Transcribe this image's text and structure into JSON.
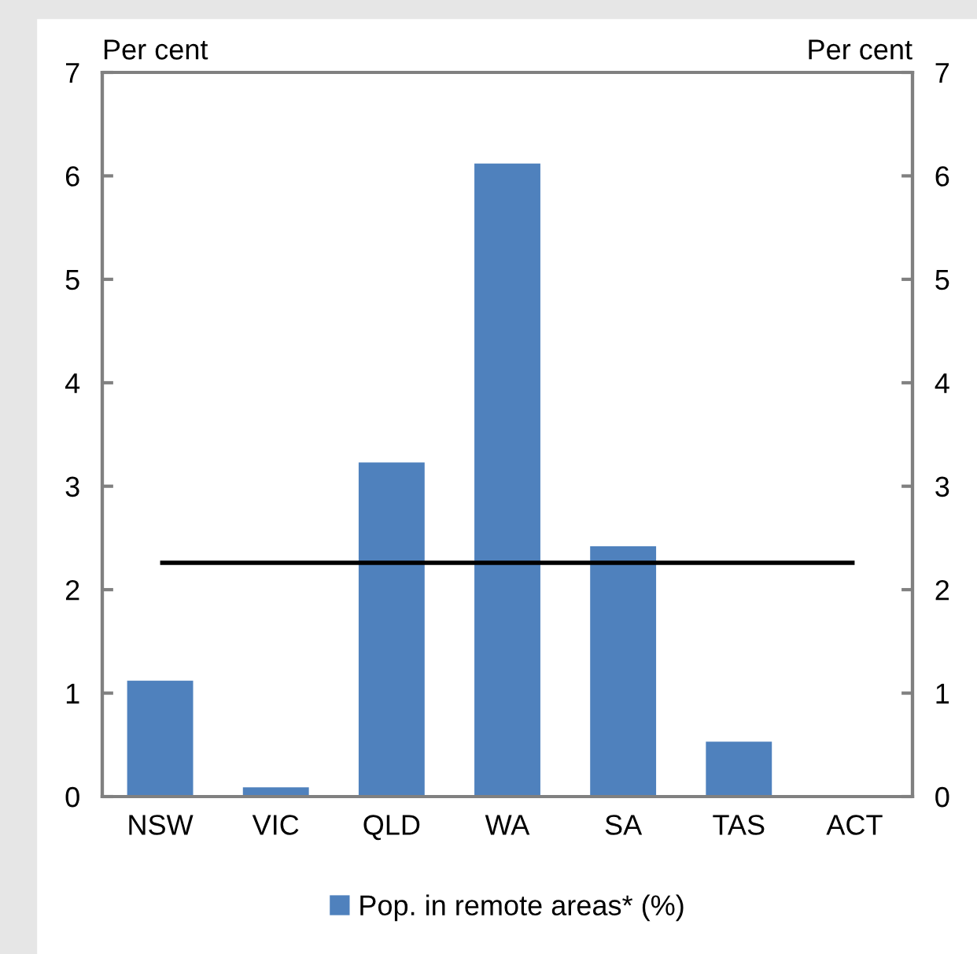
{
  "chart_data": {
    "type": "bar",
    "categories": [
      "NSW",
      "VIC",
      "QLD",
      "WA",
      "SA",
      "TAS",
      "ACT"
    ],
    "series": [
      {
        "name": "Pop. in remote areas* (%)",
        "color": "#4f81bd",
        "values": [
          1.12,
          0.09,
          3.23,
          6.12,
          2.42,
          0.53,
          0
        ]
      }
    ],
    "ylabel": "Per cent",
    "y2label": "Per cent",
    "ylim": [
      0,
      7
    ],
    "yticks": [
      0,
      1,
      2,
      3,
      4,
      5,
      6,
      7
    ],
    "y2lim": [
      0,
      7
    ],
    "y2ticks": [
      0,
      1,
      2,
      3,
      4,
      5,
      6,
      7
    ],
    "ref_lines": [
      {
        "axis": "y",
        "value": 2.26,
        "color": "#000000"
      }
    ],
    "grid": false,
    "legend": "bottom"
  }
}
